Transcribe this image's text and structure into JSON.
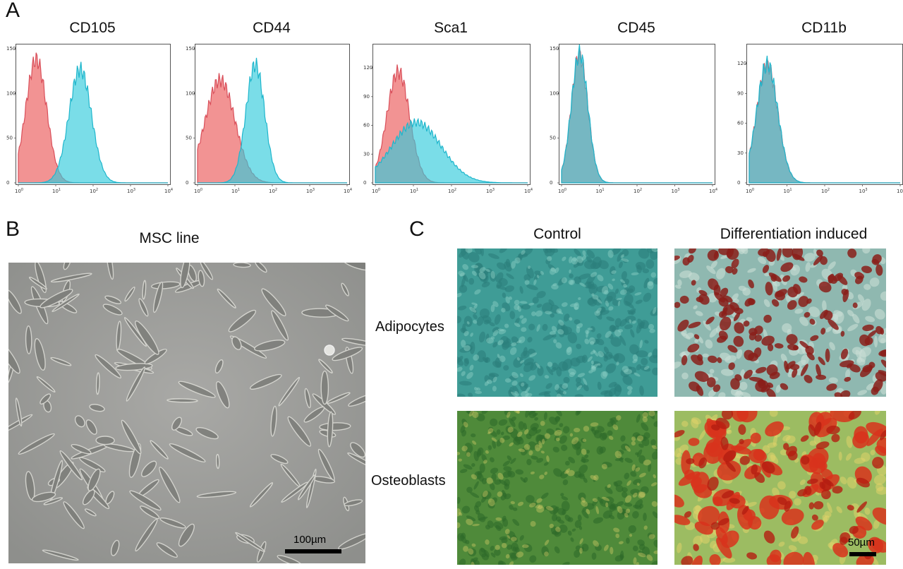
{
  "panels": {
    "a": {
      "letter": "A"
    },
    "b": {
      "letter": "B",
      "title": "MSC line",
      "scale_label": "100µm"
    },
    "c": {
      "letter": "C",
      "col_titles": [
        "Control",
        "Differentiation induced"
      ],
      "row_labels": [
        "Adipocytes",
        "Osteoblasts"
      ],
      "scale_label": "50µm"
    }
  },
  "colors": {
    "isotype": "#f08080",
    "marker": "#33cbdc",
    "overlap": "#7d8fa6"
  },
  "chart_data": [
    {
      "type": "area",
      "title": "CD105",
      "x_scale": "log",
      "xlim": [
        1,
        10000
      ],
      "ylim": [
        0,
        150
      ],
      "yticks": [
        "0",
        "50",
        "100",
        "150"
      ],
      "xticks": [
        "10^0",
        "10^1",
        "10^2",
        "10^3",
        "10^4"
      ],
      "series": [
        {
          "peak_x": 3,
          "peak_y": 138,
          "width_decades": 0.28
        },
        {
          "peak_x": 45,
          "peak_y": 127,
          "width_decades": 0.3
        }
      ]
    },
    {
      "type": "area",
      "title": "CD44",
      "x_scale": "log",
      "xlim": [
        1,
        10000
      ],
      "ylim": [
        0,
        150
      ],
      "yticks": [
        "0",
        "50",
        "100",
        "150"
      ],
      "xticks": [
        "10^0",
        "10^1",
        "10^2",
        "10^3",
        "10^4"
      ],
      "series": [
        {
          "peak_x": 4,
          "peak_y": 115,
          "width_decades": 0.4
        },
        {
          "peak_x": 35,
          "peak_y": 132,
          "width_decades": 0.25
        }
      ]
    },
    {
      "type": "area",
      "title": "Sca1",
      "x_scale": "log",
      "xlim": [
        1,
        10000
      ],
      "ylim": [
        0,
        140
      ],
      "yticks": [
        "0",
        "30",
        "60",
        "90",
        "120"
      ],
      "xticks": [
        "10^0",
        "10^1",
        "10^2",
        "10^3",
        "10^4"
      ],
      "series": [
        {
          "peak_x": 4,
          "peak_y": 116,
          "width_decades": 0.3
        },
        {
          "peak_x": 12,
          "peak_y": 63,
          "width_decades": 0.65
        }
      ]
    },
    {
      "type": "area",
      "title": "CD45",
      "x_scale": "log",
      "xlim": [
        1,
        10000
      ],
      "ylim": [
        0,
        150
      ],
      "yticks": [
        "0",
        "50",
        "100",
        "150"
      ],
      "xticks": [
        "10^0",
        "10^1",
        "10^2",
        "10^3",
        "10^4"
      ],
      "series": [
        {
          "peak_x": 3,
          "peak_y": 142,
          "width_decades": 0.22
        },
        {
          "peak_x": 3,
          "peak_y": 145,
          "width_decades": 0.22
        }
      ]
    },
    {
      "type": "area",
      "title": "CD11b",
      "x_scale": "log",
      "xlim": [
        1,
        10000
      ],
      "ylim": [
        0,
        135
      ],
      "yticks": [
        "0",
        "30",
        "60",
        "90",
        "120"
      ],
      "xticks": [
        "10^0",
        "10^1",
        "10^2",
        "10^3",
        "10^4"
      ],
      "series": [
        {
          "peak_x": 3,
          "peak_y": 118,
          "width_decades": 0.28
        },
        {
          "peak_x": 3,
          "peak_y": 120,
          "width_decades": 0.28
        }
      ]
    }
  ]
}
